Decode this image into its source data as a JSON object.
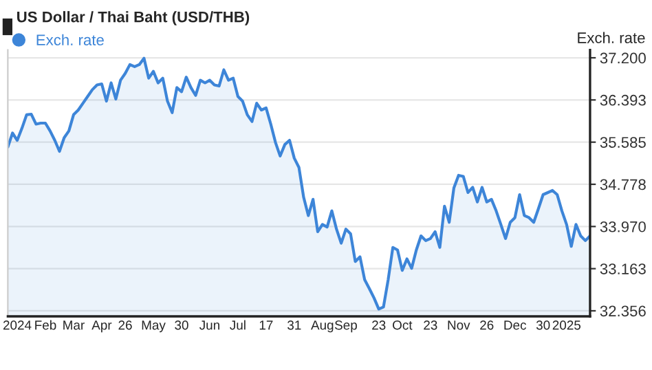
{
  "chart_data": {
    "type": "area",
    "title": "US Dollar / Thai Baht (USD/THB)",
    "ylabel": "Exch. rate",
    "categories": [
      null,
      null,
      "2024",
      null,
      null,
      null,
      null,
      null,
      "Feb",
      null,
      null,
      null,
      null,
      null,
      "Mar",
      null,
      null,
      null,
      null,
      null,
      "Apr",
      null,
      null,
      null,
      null,
      "26",
      null,
      null,
      null,
      null,
      null,
      "May",
      null,
      null,
      null,
      null,
      null,
      "30",
      null,
      null,
      null,
      null,
      null,
      "Jun",
      null,
      null,
      null,
      null,
      null,
      "Jul",
      null,
      null,
      null,
      null,
      null,
      "17",
      null,
      null,
      null,
      null,
      null,
      "31",
      null,
      null,
      null,
      null,
      null,
      "Aug",
      null,
      null,
      null,
      null,
      "Sep",
      null,
      null,
      null,
      null,
      null,
      null,
      "23",
      null,
      null,
      null,
      null,
      "Oct",
      null,
      null,
      null,
      null,
      null,
      "23",
      null,
      null,
      null,
      null,
      null,
      "Nov",
      null,
      null,
      null,
      null,
      null,
      "26",
      null,
      null,
      null,
      null,
      null,
      "Dec",
      null,
      null,
      null,
      null,
      null,
      "30",
      null,
      null,
      null,
      null,
      "2025",
      null,
      null,
      null,
      null,
      null
    ],
    "series": [
      {
        "name": "Exch. rate",
        "color": "#3d85d8",
        "values": [
          35.49,
          35.76,
          35.62,
          35.85,
          36.11,
          36.12,
          35.93,
          35.95,
          35.95,
          35.8,
          35.62,
          35.41,
          35.67,
          35.8,
          36.11,
          36.2,
          36.33,
          36.46,
          36.59,
          36.68,
          36.7,
          36.37,
          36.72,
          36.41,
          36.77,
          36.9,
          37.07,
          37.03,
          37.07,
          37.19,
          36.81,
          36.94,
          36.72,
          36.81,
          36.37,
          36.15,
          36.63,
          36.55,
          36.83,
          36.63,
          36.48,
          36.77,
          36.72,
          36.77,
          36.68,
          36.66,
          36.97,
          36.77,
          36.81,
          36.46,
          36.37,
          36.11,
          35.98,
          36.33,
          36.2,
          36.24,
          35.93,
          35.58,
          35.32,
          35.54,
          35.62,
          35.28,
          35.1,
          34.53,
          34.18,
          34.49,
          33.87,
          34.01,
          33.96,
          34.27,
          33.92,
          33.65,
          33.92,
          33.83,
          33.3,
          33.39,
          32.95,
          32.78,
          32.6,
          32.39,
          32.43,
          32.95,
          33.57,
          33.52,
          33.13,
          33.35,
          33.17,
          33.52,
          33.79,
          33.7,
          33.74,
          33.87,
          33.57,
          34.36,
          34.05,
          34.71,
          34.95,
          34.93,
          34.62,
          34.72,
          34.44,
          34.72,
          34.44,
          34.49,
          34.27,
          34.01,
          33.74,
          34.05,
          34.14,
          34.58,
          34.18,
          34.14,
          34.05,
          34.31,
          34.58,
          34.62,
          34.66,
          34.58,
          34.27,
          34.01,
          33.59,
          34.01,
          33.79,
          33.7,
          33.79
        ]
      }
    ],
    "ylim": [
      32.25,
      37.35
    ],
    "yticks": [
      {
        "value": 32.356,
        "label": "32.356"
      },
      {
        "value": 33.163,
        "label": "33.163"
      },
      {
        "value": 33.97,
        "label": "33.970"
      },
      {
        "value": 34.778,
        "label": "34.778"
      },
      {
        "value": 35.585,
        "label": "35.585"
      },
      {
        "value": 36.393,
        "label": "36.393"
      },
      {
        "value": 37.2,
        "label": "37.200"
      }
    ],
    "grid": "y",
    "legend": "top left"
  }
}
